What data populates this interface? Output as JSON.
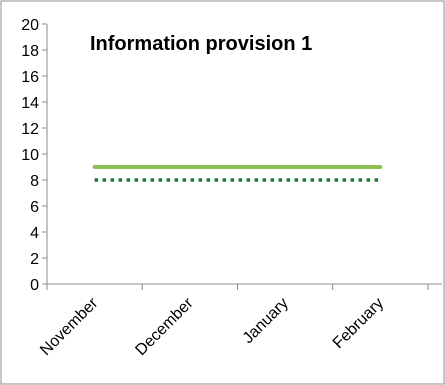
{
  "chart_data": {
    "type": "line",
    "title": "Information provision 1",
    "xlabel": "",
    "ylabel": "",
    "categories": [
      "November",
      "December",
      "January",
      "February"
    ],
    "ylim": [
      0,
      20
    ],
    "yticks": [
      0,
      2,
      4,
      6,
      8,
      10,
      12,
      14,
      16,
      18,
      20
    ],
    "series": [
      {
        "values": [
          9,
          9,
          9,
          9
        ],
        "color": "#8cc152",
        "style": "solid"
      },
      {
        "values": [
          8,
          8,
          8,
          8
        ],
        "color": "#1a7a2e",
        "style": "dotted"
      }
    ],
    "grid": false,
    "legend": "none"
  }
}
